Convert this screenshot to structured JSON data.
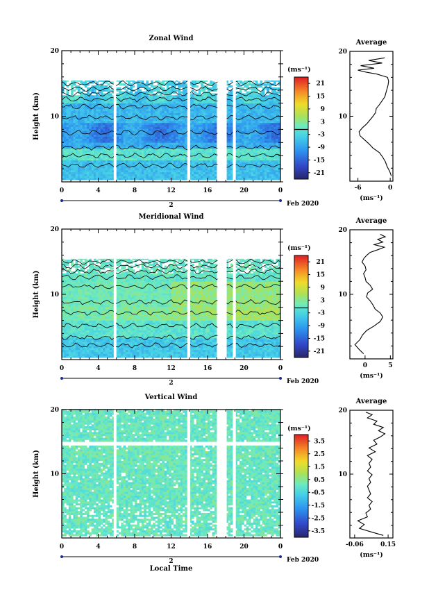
{
  "figure": {
    "xlabel": "Local Time"
  },
  "chart_data": [
    {
      "type": "heatmap",
      "title": "Zonal Wind",
      "ylabel": "Height (km)",
      "xlim": [
        0,
        24
      ],
      "ylim": [
        0,
        20
      ],
      "x_ticks": [
        "0",
        "4",
        "8",
        "12",
        "16",
        "20",
        "0"
      ],
      "y_ticks": [
        "10",
        "20"
      ],
      "date_marker": "2",
      "date_label": "Feb 2020",
      "colorbar": {
        "unit": "(ms⁻¹)",
        "ticks": [
          "21",
          "15",
          "9",
          "3",
          "-3",
          "-9",
          "-15",
          "-21"
        ],
        "range": [
          -24,
          24
        ]
      },
      "data_gaps_hours": [
        [
          5.7,
          5.95
        ],
        [
          13.8,
          14.1
        ],
        [
          17.1,
          18.1
        ],
        [
          18.8,
          19.1
        ]
      ],
      "data_top_km": 15.5,
      "profile": {
        "title": "Average",
        "xlabel": "(ms⁻¹)",
        "x_ticks": [
          "-6",
          "0"
        ],
        "xlim": [
          -7.5,
          0.5
        ],
        "x_tick_values": [
          -6,
          0
        ],
        "points": [
          [
            0.2,
            0.8
          ],
          [
            -0.1,
            1.5
          ],
          [
            -0.6,
            2.3
          ],
          [
            -0.9,
            3.0
          ],
          [
            -1.4,
            3.7
          ],
          [
            -2.0,
            4.4
          ],
          [
            -3.2,
            5.1
          ],
          [
            -4.0,
            5.8
          ],
          [
            -4.8,
            6.4
          ],
          [
            -5.6,
            7.0
          ],
          [
            -5.8,
            7.6
          ],
          [
            -5.2,
            8.2
          ],
          [
            -4.4,
            8.8
          ],
          [
            -3.8,
            9.4
          ],
          [
            -3.2,
            10.0
          ],
          [
            -2.7,
            10.6
          ],
          [
            -2.6,
            11.2
          ],
          [
            -2.0,
            11.8
          ],
          [
            -1.5,
            12.4
          ],
          [
            -1.0,
            13.0
          ],
          [
            -0.8,
            13.6
          ],
          [
            -0.6,
            14.2
          ],
          [
            -0.4,
            14.8
          ],
          [
            -0.3,
            15.4
          ],
          [
            -0.5,
            16.0
          ],
          [
            -2.5,
            16.5
          ],
          [
            -4.5,
            16.8
          ],
          [
            -6.0,
            17.1
          ],
          [
            -3.0,
            17.4
          ],
          [
            -5.5,
            17.8
          ],
          [
            -1.5,
            18.2
          ],
          [
            -4.0,
            18.6
          ],
          [
            -1.0,
            19.0
          ]
        ]
      }
    },
    {
      "type": "heatmap",
      "title": "Meridional Wind",
      "ylabel": "Height (km)",
      "xlim": [
        0,
        24
      ],
      "ylim": [
        0,
        20
      ],
      "x_ticks": [
        "0",
        "4",
        "8",
        "12",
        "16",
        "20",
        "0"
      ],
      "y_ticks": [
        "10",
        "20"
      ],
      "date_marker": "2",
      "date_label": "Feb 2020",
      "colorbar": {
        "unit": "(ms⁻¹)",
        "ticks": [
          "21",
          "15",
          "9",
          "3",
          "-3",
          "-9",
          "-15",
          "-21"
        ],
        "range": [
          -24,
          24
        ]
      },
      "data_gaps_hours": [
        [
          5.7,
          5.95
        ],
        [
          13.8,
          14.1
        ],
        [
          17.1,
          18.1
        ],
        [
          18.8,
          19.1
        ]
      ],
      "data_top_km": 15.5,
      "profile": {
        "title": "Average",
        "xlabel": "(ms⁻¹)",
        "x_ticks": [
          "0",
          "5"
        ],
        "xlim": [
          -3,
          5.5
        ],
        "x_tick_values": [
          0,
          5
        ],
        "points": [
          [
            -0.3,
            0.8
          ],
          [
            -1.2,
            1.5
          ],
          [
            -2.0,
            2.2
          ],
          [
            -1.0,
            3.0
          ],
          [
            -0.5,
            3.7
          ],
          [
            0.3,
            4.4
          ],
          [
            1.8,
            5.1
          ],
          [
            3.0,
            5.8
          ],
          [
            3.5,
            6.5
          ],
          [
            3.0,
            7.1
          ],
          [
            2.0,
            7.7
          ],
          [
            1.6,
            8.3
          ],
          [
            1.0,
            9.0
          ],
          [
            0.3,
            9.6
          ],
          [
            0.5,
            10.2
          ],
          [
            1.5,
            10.8
          ],
          [
            1.0,
            11.4
          ],
          [
            0.2,
            12.0
          ],
          [
            0.0,
            12.6
          ],
          [
            -0.3,
            13.2
          ],
          [
            0.2,
            13.8
          ],
          [
            0.0,
            14.4
          ],
          [
            -0.6,
            15.0
          ],
          [
            -0.2,
            15.6
          ],
          [
            0.4,
            16.1
          ],
          [
            1.0,
            16.5
          ],
          [
            2.5,
            16.9
          ],
          [
            3.8,
            17.3
          ],
          [
            1.8,
            17.7
          ],
          [
            3.5,
            18.1
          ],
          [
            2.5,
            18.5
          ],
          [
            4.0,
            18.9
          ],
          [
            3.0,
            19.3
          ]
        ]
      }
    },
    {
      "type": "heatmap",
      "title": "Vertical Wind",
      "ylabel": "Height (km)",
      "xlim": [
        0,
        24
      ],
      "ylim": [
        0,
        20
      ],
      "x_ticks": [
        "0",
        "4",
        "8",
        "12",
        "16",
        "20",
        "0"
      ],
      "y_ticks": [
        "10",
        "20"
      ],
      "date_marker": "2",
      "date_label": "Feb 2020",
      "colorbar": {
        "unit": "(ms⁻¹)",
        "ticks": [
          "3.5",
          "2.5",
          "1.5",
          "0.5",
          "-0.5",
          "-1.5",
          "-2.5",
          "-3.5"
        ],
        "range": [
          -4,
          4
        ]
      },
      "data_gaps_hours": [
        [
          5.7,
          5.95
        ],
        [
          13.8,
          14.1
        ],
        [
          17.1,
          18.1
        ],
        [
          18.8,
          19.1
        ]
      ],
      "data_top_km": 20,
      "profile": {
        "title": "Average",
        "xlabel": "(ms⁻¹)",
        "x_ticks": [
          "-0.06",
          "0.15"
        ],
        "xlim": [
          -0.09,
          0.18
        ],
        "x_tick_values": [
          -0.06,
          0.15
        ],
        "points": [
          [
            0.12,
            0.4
          ],
          [
            0.05,
            0.9
          ],
          [
            -0.03,
            1.5
          ],
          [
            0.0,
            2.1
          ],
          [
            -0.04,
            2.7
          ],
          [
            0.02,
            3.3
          ],
          [
            0.01,
            3.9
          ],
          [
            0.04,
            4.5
          ],
          [
            0.03,
            5.1
          ],
          [
            0.05,
            5.7
          ],
          [
            0.02,
            6.3
          ],
          [
            0.04,
            6.9
          ],
          [
            0.03,
            7.5
          ],
          [
            0.02,
            8.1
          ],
          [
            0.04,
            8.7
          ],
          [
            0.03,
            9.3
          ],
          [
            0.05,
            9.9
          ],
          [
            0.02,
            10.5
          ],
          [
            0.04,
            11.1
          ],
          [
            0.03,
            11.7
          ],
          [
            0.05,
            12.3
          ],
          [
            0.02,
            12.9
          ],
          [
            0.07,
            13.5
          ],
          [
            0.03,
            14.1
          ],
          [
            0.08,
            14.7
          ],
          [
            0.06,
            15.3
          ],
          [
            0.1,
            15.8
          ],
          [
            0.13,
            16.3
          ],
          [
            0.09,
            16.8
          ],
          [
            0.12,
            17.3
          ],
          [
            0.06,
            17.8
          ],
          [
            0.08,
            18.3
          ],
          [
            0.02,
            18.8
          ],
          [
            0.05,
            19.3
          ],
          [
            0.01,
            19.7
          ]
        ]
      }
    }
  ]
}
